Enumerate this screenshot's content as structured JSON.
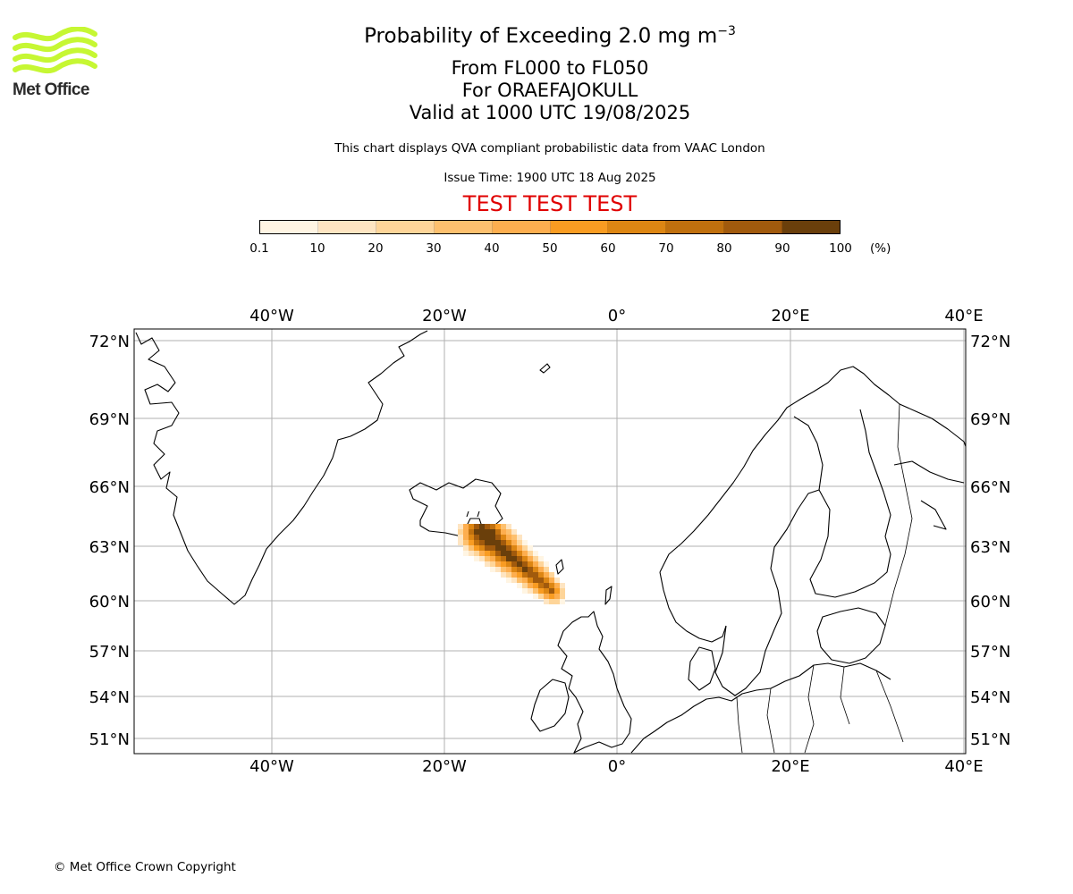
{
  "logo": {
    "text": "Met Office",
    "color": "#c6f733"
  },
  "title": {
    "main": "Probability of Exceeding 2.0 mg m",
    "main_sup": "−3",
    "flight_levels": "From FL000 to FL050",
    "volcano": "For ORAEFAJOKULL",
    "valid_time": "Valid at 1000 UTC 19/08/2025"
  },
  "subtitle": "This chart displays QVA compliant probabilistic data from VAAC London",
  "issue_time": "Issue Time: 1900 UTC 18 Aug 2025",
  "test_banner": "TEST TEST TEST",
  "colorbar": {
    "unit": "(%)",
    "ticks": [
      "0.1",
      "10",
      "20",
      "30",
      "40",
      "50",
      "60",
      "70",
      "80",
      "90",
      "100"
    ],
    "colors": [
      "#fff5e3",
      "#fee5c2",
      "#fed599",
      "#fdc06e",
      "#fdae4f",
      "#f99c22",
      "#dd8613",
      "#c0700e",
      "#a15a0d",
      "#6a3f0b"
    ]
  },
  "map": {
    "lon_labels": [
      "40°W",
      "20°W",
      "0°",
      "20°E",
      "40°E"
    ],
    "lat_labels": [
      "72°N",
      "69°N",
      "66°N",
      "63°N",
      "60°N",
      "57°N",
      "54°N",
      "51°N"
    ],
    "gridlines": true,
    "plume_max_probability": 100
  },
  "copyright": "© Met Office Crown Copyright"
}
